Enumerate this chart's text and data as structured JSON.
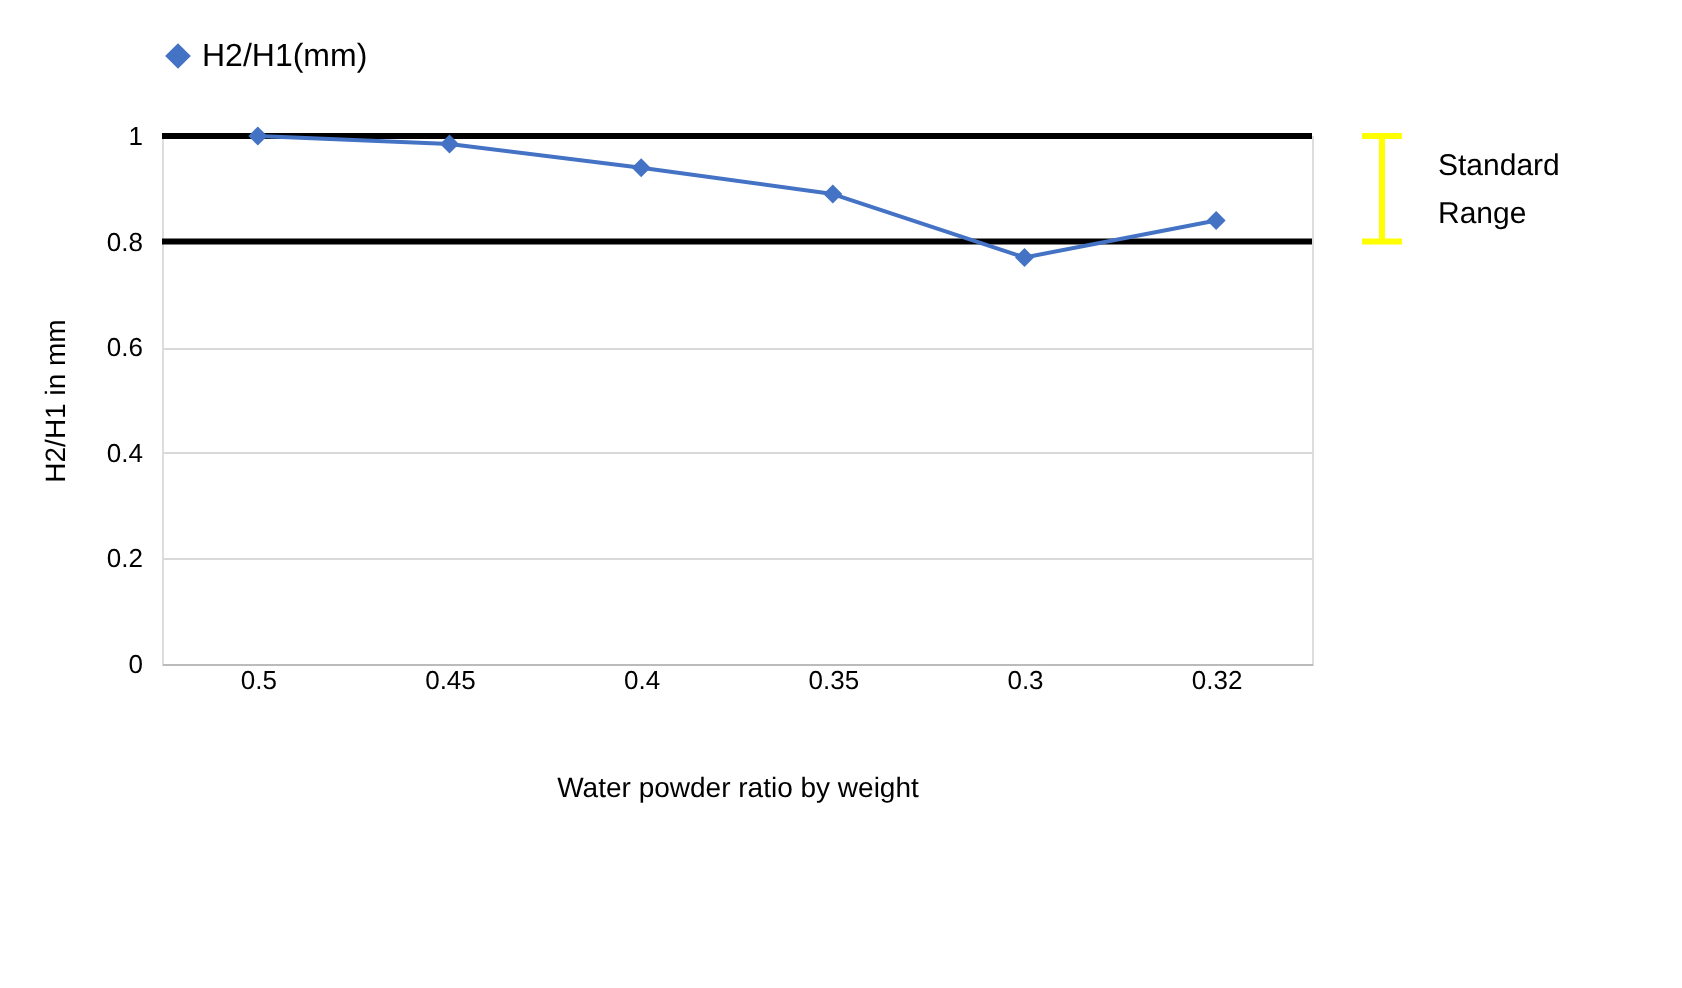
{
  "chart_data": {
    "type": "line",
    "categories": [
      "0.5",
      "0.45",
      "0.4",
      "0.35",
      "0.3",
      "0.32"
    ],
    "series": [
      {
        "name": "H2/H1(mm)",
        "color": "#4472c4",
        "values": [
          1.0,
          0.985,
          0.94,
          0.89,
          0.77,
          0.84
        ]
      }
    ],
    "xlabel": "Water powder ratio by weight",
    "ylabel": "H2/H1 in mm",
    "ylim": [
      0,
      1
    ],
    "yticks": [
      0,
      0.2,
      0.4,
      0.6,
      0.8,
      1
    ],
    "ref_lines": [
      {
        "axis": "y",
        "value": 1,
        "color": "#000000"
      },
      {
        "axis": "y",
        "value": 0.8,
        "color": "#000000"
      }
    ],
    "annotations": [
      "Standard Range"
    ],
    "grid": "y",
    "legend": "top",
    "marker": "diamond",
    "line_style": "solid"
  }
}
